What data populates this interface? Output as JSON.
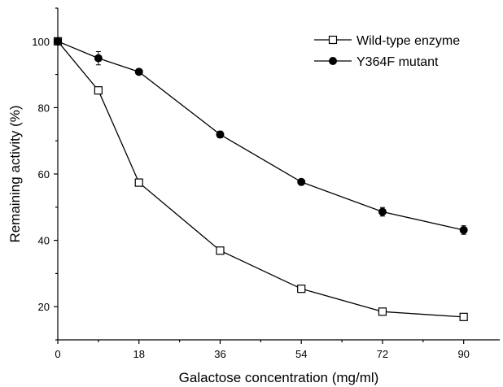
{
  "chart_data": {
    "type": "line",
    "xlabel": "Galactose concentration (mg/ml)",
    "ylabel": "Remaining activity (%)",
    "xlim": [
      0,
      98
    ],
    "ylim": [
      10,
      110
    ],
    "x_ticks": [
      0,
      18,
      36,
      54,
      72,
      90
    ],
    "y_ticks": [
      20,
      40,
      60,
      80,
      100
    ],
    "grid": false,
    "legend_position": "top-right",
    "series": [
      {
        "name": "Wild-type enzyme",
        "marker": "open-square",
        "x": [
          0,
          9,
          18,
          36,
          54,
          72,
          90
        ],
        "y": [
          100,
          85.2,
          57.4,
          36.9,
          25.4,
          18.5,
          16.9
        ],
        "err": [
          0,
          0.8,
          0.8,
          0.8,
          0.8,
          0.8,
          0.8
        ]
      },
      {
        "name": "Y364F mutant",
        "marker": "filled-circle",
        "x": [
          0,
          9,
          18,
          36,
          54,
          72,
          90
        ],
        "y": [
          100,
          94.9,
          90.8,
          71.9,
          57.6,
          48.6,
          43.1
        ],
        "err": [
          0,
          2.0,
          0.6,
          1.0,
          0.8,
          1.3,
          1.3
        ]
      }
    ]
  }
}
